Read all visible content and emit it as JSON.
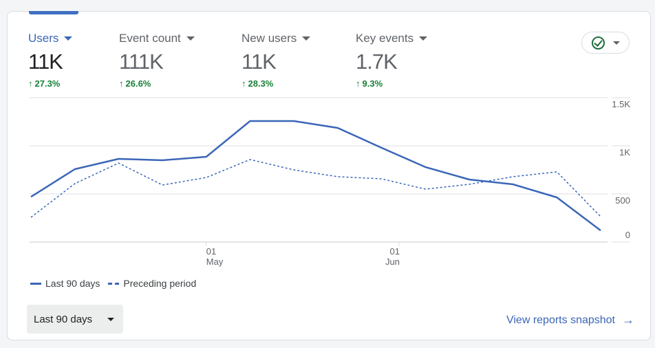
{
  "metrics": [
    {
      "label": "Users",
      "value": "11K",
      "delta": "27.3%",
      "active": true
    },
    {
      "label": "Event count",
      "value": "111K",
      "delta": "26.6%",
      "active": false
    },
    {
      "label": "New users",
      "value": "11K",
      "delta": "28.3%",
      "active": false
    },
    {
      "label": "Key events",
      "value": "1.7K",
      "delta": "9.3%",
      "active": false
    }
  ],
  "delta_arrow": "↑",
  "compare_button": {
    "icon": "check-circle-icon"
  },
  "colors": {
    "accent": "#3a66b7",
    "positive": "#188038",
    "grid": "#e8eaed"
  },
  "chart_data": {
    "type": "line",
    "y_ticks": [
      "0",
      "500",
      "1K",
      "1.5K"
    ],
    "y_tick_values": [
      0,
      500,
      1000,
      1500
    ],
    "ylim": [
      0,
      1500
    ],
    "x_ticks": [
      {
        "day": "01",
        "month": "May",
        "index": 4
      },
      {
        "day": "01",
        "month": "Jun",
        "index": 8.4
      }
    ],
    "x_count": 14,
    "grid": true,
    "legend_position": "bottom-left",
    "series": [
      {
        "name": "Last 90 days",
        "style": "solid",
        "values": [
          470,
          757,
          864,
          850,
          886,
          1257,
          1257,
          1186,
          979,
          779,
          650,
          600,
          464,
          121
        ]
      },
      {
        "name": "Preceding period",
        "style": "dashed",
        "values": [
          257,
          607,
          821,
          593,
          671,
          857,
          750,
          679,
          657,
          550,
          600,
          679,
          729,
          264
        ]
      }
    ]
  },
  "legend": {
    "current": "Last 90 days",
    "previous": "Preceding period"
  },
  "date_range": {
    "label": "Last 90 days"
  },
  "snapshot_link": {
    "label": "View reports snapshot",
    "arrow": "→"
  }
}
